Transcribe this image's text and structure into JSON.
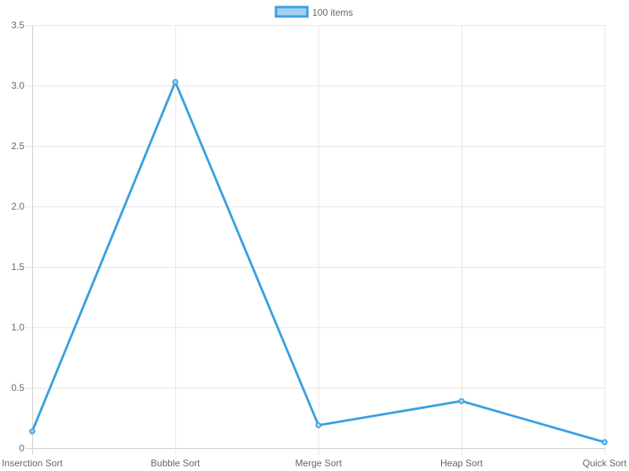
{
  "chart_data": {
    "type": "line",
    "categories": [
      "Inserction Sort",
      "Bubble Sort",
      "Merge Sort",
      "Heap Sort",
      "Quick Sort"
    ],
    "series": [
      {
        "name": "100 items",
        "values": [
          0.14,
          3.03,
          0.19,
          0.39,
          0.05
        ],
        "color": "#3b9fe2",
        "fill_color": "#9fd0f2"
      }
    ],
    "ylim": [
      0,
      3.5
    ],
    "y_ticks": [
      "0",
      "0.5",
      "1.0",
      "1.5",
      "2.0",
      "2.5",
      "3.0",
      "3.5"
    ],
    "grid": true,
    "legend_position": "top-center"
  }
}
